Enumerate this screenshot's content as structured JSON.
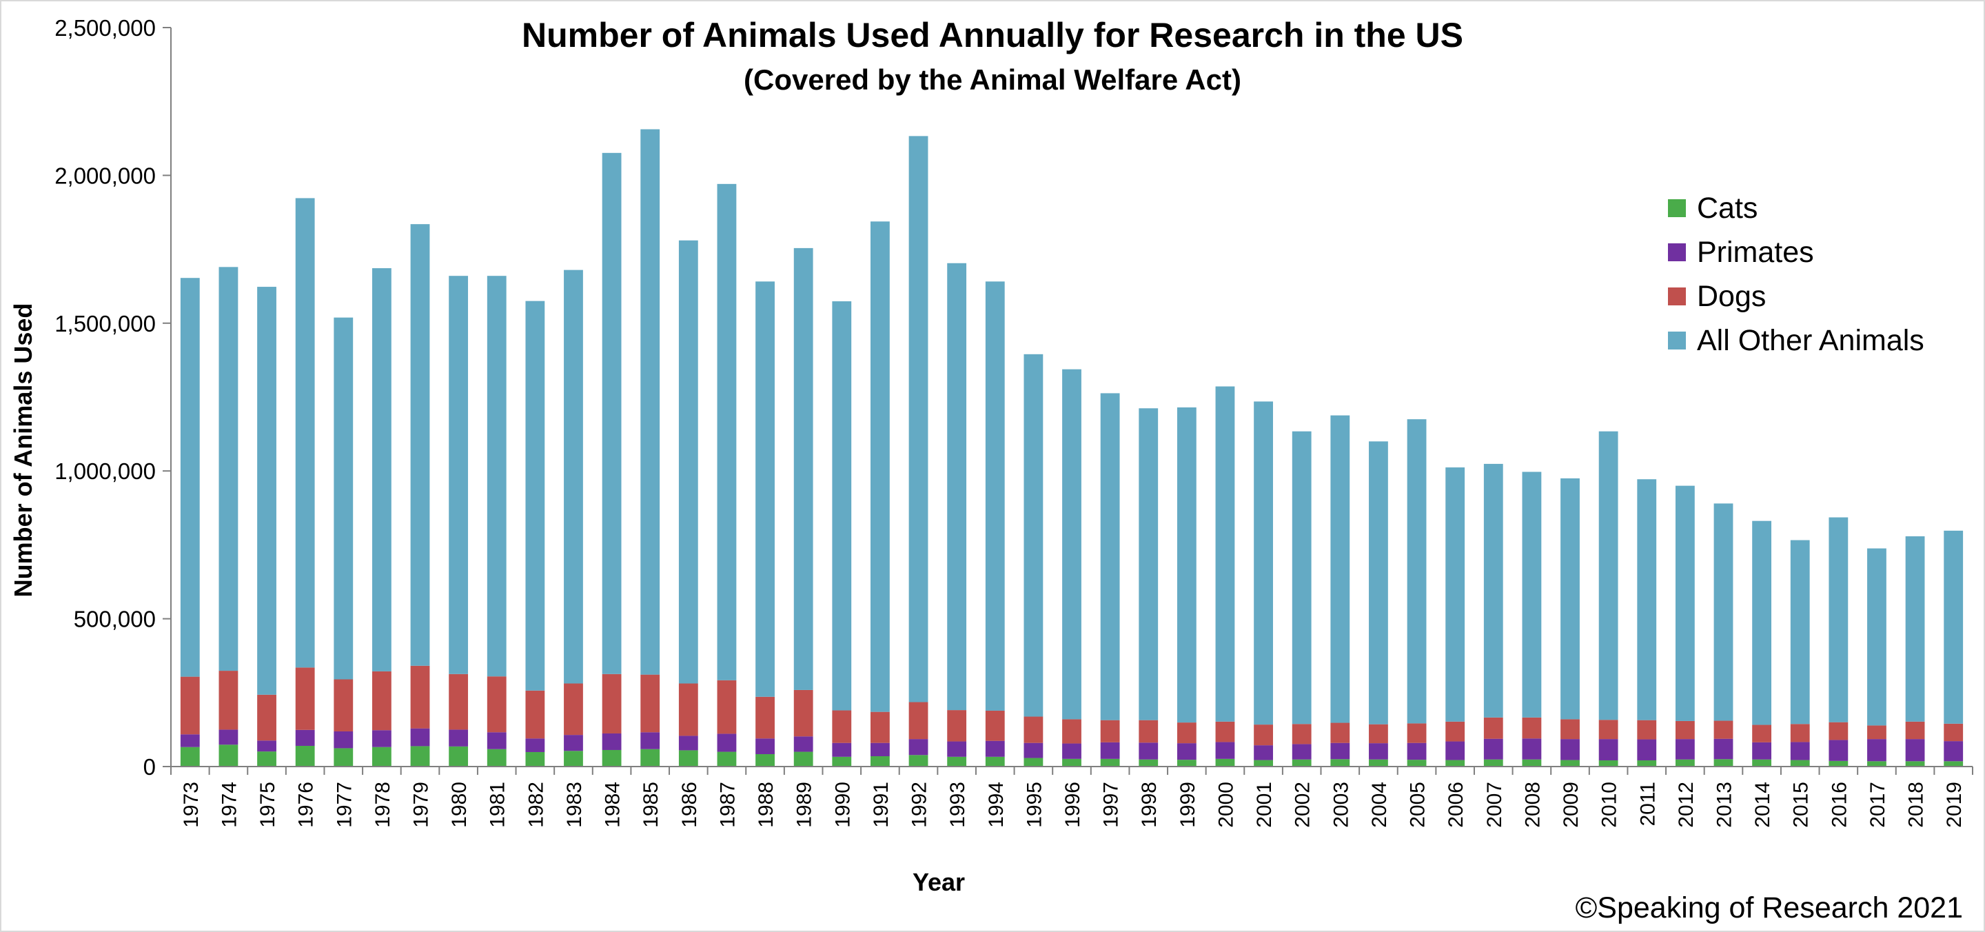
{
  "chart_data": {
    "type": "bar",
    "stacked": true,
    "title": "Number of Animals Used Annually for Research in the US",
    "subtitle": "(Covered by the Animal Welfare Act)",
    "xlabel": "Year",
    "ylabel": "Number of Animals Used",
    "ylim": [
      0,
      2500000
    ],
    "yticks": [
      "0",
      "500,000",
      "1,000,000",
      "1,500,000",
      "2,000,000",
      "2,500,000"
    ],
    "yticks_values": [
      0,
      500000,
      1000000,
      1500000,
      2000000,
      2500000
    ],
    "grid": false,
    "legend_position": "right",
    "categories": [
      "1973",
      "1974",
      "1975",
      "1976",
      "1977",
      "1978",
      "1979",
      "1980",
      "1981",
      "1982",
      "1983",
      "1984",
      "1985",
      "1986",
      "1987",
      "1988",
      "1989",
      "1990",
      "1991",
      "1992",
      "1993",
      "1994",
      "1995",
      "1996",
      "1997",
      "1998",
      "1999",
      "2000",
      "2001",
      "2002",
      "2003",
      "2004",
      "2005",
      "2006",
      "2007",
      "2008",
      "2009",
      "2010",
      "2011",
      "2012",
      "2013",
      "2014",
      "2015",
      "2016",
      "2017",
      "2018",
      "2019"
    ],
    "series": [
      {
        "name": "Cats",
        "color": "#4aac4a",
        "values": [
          66000,
          74000,
          51000,
          70000,
          62000,
          66000,
          69000,
          68000,
          59000,
          49000,
          53000,
          56000,
          59000,
          55000,
          50000,
          42000,
          50000,
          33000,
          35000,
          39000,
          33000,
          33000,
          29000,
          26000,
          26000,
          24000,
          23000,
          26000,
          22000,
          24000,
          25000,
          24000,
          23000,
          22000,
          24000,
          24000,
          22000,
          21000,
          21000,
          24000,
          25000,
          24000,
          22000,
          19000,
          18000,
          18000,
          18000
        ]
      },
      {
        "name": "Primates",
        "color": "#7030a0",
        "values": [
          43000,
          51000,
          37000,
          54000,
          57000,
          57000,
          60000,
          57000,
          57000,
          46000,
          54000,
          56000,
          57000,
          49000,
          61000,
          53000,
          52000,
          47000,
          45000,
          54000,
          52000,
          54000,
          51000,
          52000,
          56000,
          57000,
          56000,
          57000,
          50000,
          52000,
          55000,
          55000,
          57000,
          63000,
          70000,
          71000,
          71000,
          72000,
          71000,
          69000,
          69000,
          58000,
          61000,
          71000,
          75000,
          75000,
          68000
        ]
      },
      {
        "name": "Dogs",
        "color": "#c0504d",
        "values": [
          195000,
          199000,
          155000,
          211000,
          176000,
          199000,
          212000,
          188000,
          189000,
          162000,
          174000,
          201000,
          195000,
          177000,
          181000,
          141000,
          157000,
          110000,
          105000,
          125000,
          106000,
          102000,
          89000,
          82000,
          75000,
          76000,
          70000,
          69000,
          70000,
          68000,
          68000,
          64000,
          66000,
          67000,
          72000,
          71000,
          67000,
          65000,
          65000,
          61000,
          61000,
          59000,
          61000,
          60000,
          46000,
          59000,
          59000
        ]
      },
      {
        "name": "All Other Animals",
        "color": "#64aac4",
        "values": [
          1349000,
          1366000,
          1380000,
          1588000,
          1224000,
          1364000,
          1494000,
          1347000,
          1355000,
          1318000,
          1399000,
          1763000,
          1845000,
          1499000,
          1679000,
          1405000,
          1495000,
          1384000,
          1659000,
          1915000,
          1512000,
          1452000,
          1226000,
          1184000,
          1106000,
          1055000,
          1066000,
          1134000,
          1093000,
          990000,
          1040000,
          957000,
          1029000,
          860000,
          858000,
          831000,
          815000,
          976000,
          815000,
          796000,
          735000,
          690000,
          622000,
          693000,
          599000,
          627000,
          653000
        ]
      }
    ]
  },
  "footer": {
    "copyright": "©Speaking of Research 2021"
  }
}
